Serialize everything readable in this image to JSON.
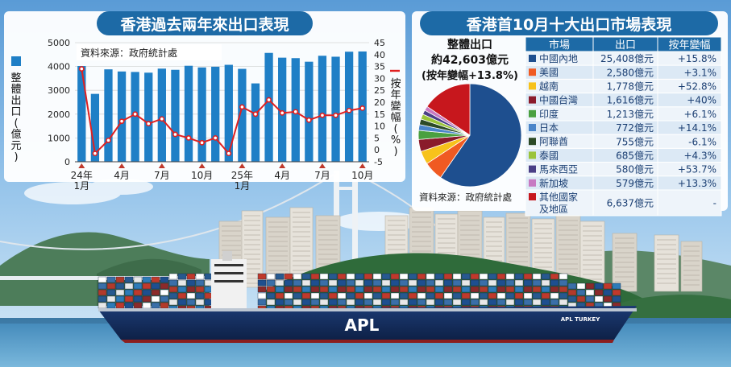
{
  "left_panel": {
    "title": "香港過去兩年來出口表現",
    "source": "資料來源：政府統計處",
    "left_axis_label": [
      "整",
      "體",
      "出",
      "口",
      "(",
      "億",
      "元",
      ")"
    ],
    "right_axis_label": [
      "按",
      "年",
      "變",
      "幅",
      "(",
      "%",
      ")"
    ],
    "x_tick_labels": [
      {
        "index": 0,
        "lines": [
          "24年",
          "1月"
        ]
      },
      {
        "index": 3,
        "lines": [
          "4月"
        ]
      },
      {
        "index": 6,
        "lines": [
          "7月"
        ]
      },
      {
        "index": 9,
        "lines": [
          "10月"
        ]
      },
      {
        "index": 12,
        "lines": [
          "25年",
          "1月"
        ]
      },
      {
        "index": 15,
        "lines": [
          "4月"
        ]
      },
      {
        "index": 18,
        "lines": [
          "7月"
        ]
      },
      {
        "index": 21,
        "lines": [
          "10月"
        ]
      }
    ]
  },
  "right_panel": {
    "title": "香港首10月十大出口市場表現",
    "pie_heading_lines": [
      "整體出口",
      "約42,603億元",
      "(按年變幅+13.8%)"
    ],
    "source": "資料來源：政府統計處",
    "table_headers": [
      "市場",
      "出口",
      "按年變幅"
    ]
  },
  "chart_data": [
    {
      "type": "bar+line",
      "title": "香港過去兩年來出口表現",
      "x": [
        "2024-01",
        "2024-02",
        "2024-03",
        "2024-04",
        "2024-05",
        "2024-06",
        "2024-07",
        "2024-08",
        "2024-09",
        "2024-10",
        "2024-11",
        "2024-12",
        "2025-01",
        "2025-02",
        "2025-03",
        "2025-04",
        "2025-05",
        "2025-06",
        "2025-07",
        "2025-08",
        "2025-09",
        "2025-10"
      ],
      "series": [
        {
          "name": "整體出口(億元)",
          "axis": "left",
          "kind": "bar",
          "color": "#1f7fc6",
          "values": [
            4020,
            2850,
            3880,
            3790,
            3770,
            3740,
            3910,
            3860,
            4030,
            3960,
            3990,
            4070,
            3900,
            3290,
            4570,
            4370,
            4350,
            4200,
            4450,
            4410,
            4620,
            4630
          ]
        },
        {
          "name": "按年變幅(%)",
          "axis": "right",
          "kind": "line",
          "color": "#e02020",
          "values": [
            34,
            -1.5,
            4,
            12,
            15,
            11,
            13,
            6.5,
            5,
            3,
            5,
            -1.5,
            18,
            15,
            21,
            15.5,
            16,
            12.5,
            14.5,
            14.5,
            16.5,
            17.5
          ]
        }
      ],
      "ylabel_left": "整體出口(億元)",
      "ylabel_right": "按年變幅(%)",
      "ylim_left": [
        0,
        5000
      ],
      "ylim_right": [
        -5,
        45
      ],
      "left_ticks": [
        0,
        1000,
        2000,
        3000,
        4000,
        5000
      ],
      "right_ticks": [
        -5,
        0,
        5,
        10,
        15,
        20,
        25,
        30,
        35,
        40,
        45
      ],
      "grid": true,
      "legend": "none"
    },
    {
      "type": "pie",
      "title": "香港首10月十大出口市場表現",
      "total": "約42,603億元",
      "total_change": "+13.8%",
      "slices": [
        {
          "name": "中國內地",
          "value": 25408,
          "color": "#1e4f8f"
        },
        {
          "name": "美國",
          "value": 2580,
          "color": "#f05a22"
        },
        {
          "name": "越南",
          "value": 1778,
          "color": "#f7c21b"
        },
        {
          "name": "中國台灣",
          "value": 1616,
          "color": "#8a1b2b"
        },
        {
          "name": "印度",
          "value": 1213,
          "color": "#4aa040"
        },
        {
          "name": "日本",
          "value": 772,
          "color": "#4a85c9"
        },
        {
          "name": "阿聯酋",
          "value": 755,
          "color": "#2c4a26"
        },
        {
          "name": "泰國",
          "value": 685,
          "color": "#9bc43a"
        },
        {
          "name": "馬來西亞",
          "value": 580,
          "color": "#4a3f86"
        },
        {
          "name": "新加坡",
          "value": 579,
          "color": "#c779c2"
        },
        {
          "name": "其他國家及地區",
          "value": 6637,
          "color": "#c7171d"
        }
      ]
    },
    {
      "type": "table",
      "columns": [
        "市場",
        "出口",
        "按年變幅"
      ],
      "rows": [
        {
          "market": "中國內地",
          "export": "25,408億元",
          "change": "+15.8%",
          "color": "#1e4f8f"
        },
        {
          "market": "美國",
          "export": "2,580億元",
          "change": "+3.1%",
          "color": "#f05a22"
        },
        {
          "market": "越南",
          "export": "1,778億元",
          "change": "+52.8%",
          "color": "#f7c21b"
        },
        {
          "market": "中國台灣",
          "export": "1,616億元",
          "change": "+40%",
          "color": "#8a1b2b"
        },
        {
          "market": "印度",
          "export": "1,213億元",
          "change": "+6.1%",
          "color": "#4aa040"
        },
        {
          "market": "日本",
          "export": "772億元",
          "change": "+14.1%",
          "color": "#4a85c9"
        },
        {
          "market": "阿聯酋",
          "export": "755億元",
          "change": "-6.1%",
          "color": "#2c4a26"
        },
        {
          "market": "泰國",
          "export": "685億元",
          "change": "+4.3%",
          "color": "#9bc43a"
        },
        {
          "market": "馬來西亞",
          "export": "580億元",
          "change": "+53.7%",
          "color": "#4a3f86"
        },
        {
          "market": "新加坡",
          "export": "579億元",
          "change": "+13.3%",
          "color": "#c779c2"
        },
        {
          "market": "其他國家及地區",
          "market_lines": [
            "其他國家",
            "及地區"
          ],
          "export": "6,637億元",
          "change": "-",
          "color": "#c7171d"
        }
      ]
    }
  ],
  "photo": {
    "ship_name": "APL",
    "ship_hull_text": "APL TURKEY"
  }
}
